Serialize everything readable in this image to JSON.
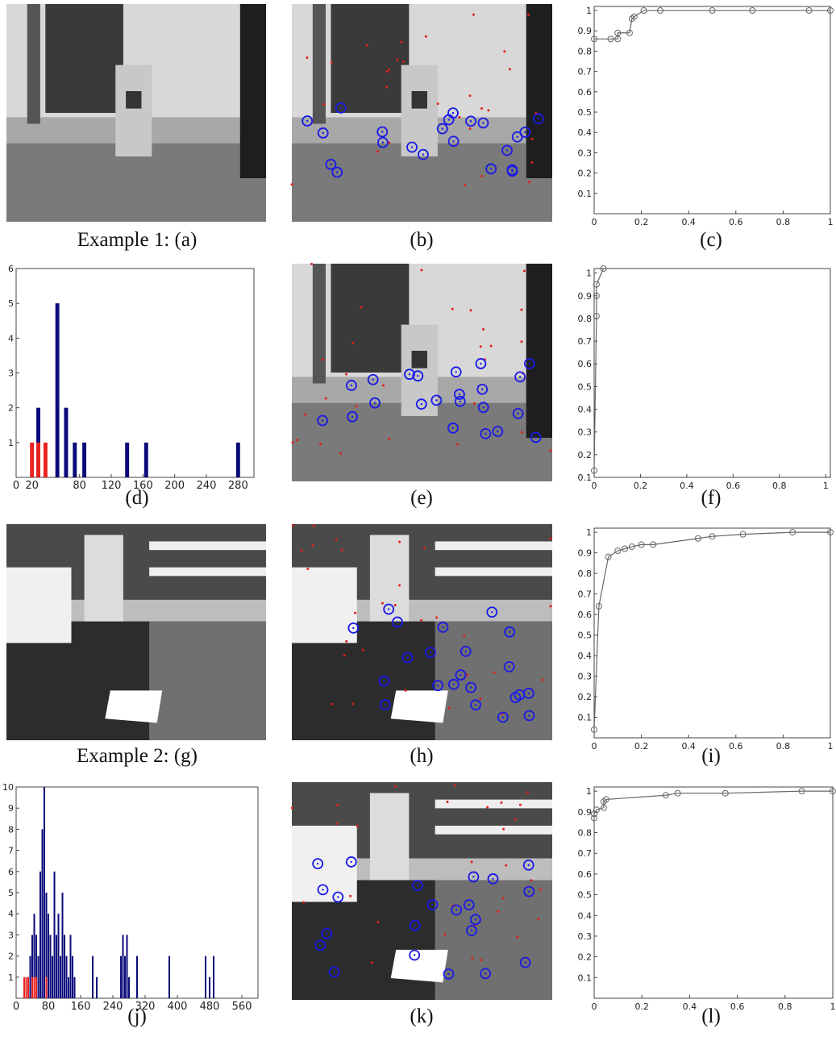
{
  "captions": [
    "Example 1: (a)",
    "(b)",
    "(c)",
    "(d)",
    "(e)",
    "(f)",
    "Example 2: (g)",
    "(h)",
    "(i)",
    "(j)",
    "(k)",
    "(l)"
  ],
  "chart_data": [
    {
      "type": "line",
      "marker": "o",
      "color": "#666",
      "xlim": [
        0,
        1
      ],
      "ylim": [
        0,
        1.02
      ],
      "xticks": [
        0,
        0.2,
        0.4,
        0.6,
        0.8,
        1
      ],
      "yticks": [
        0.1,
        0.2,
        0.3,
        0.4,
        0.5,
        0.6,
        0.7,
        0.8,
        0.9,
        1
      ],
      "x": [
        0,
        0.07,
        0.1,
        0.1,
        0.15,
        0.16,
        0.17,
        0.21,
        0.28,
        0.5,
        0.67,
        0.91,
        1
      ],
      "series": [
        {
          "values": [
            0.86,
            0.86,
            0.86,
            0.89,
            0.89,
            0.96,
            0.97,
            1,
            1,
            1,
            1,
            1,
            1
          ]
        }
      ]
    },
    {
      "type": "bar",
      "xlim": [
        0,
        300
      ],
      "ylim": [
        0,
        6
      ],
      "bar_width": 5,
      "xticks": [
        0,
        20,
        80,
        120,
        160,
        200,
        240,
        280
      ],
      "yticks": [
        1,
        2,
        3,
        4,
        5,
        6
      ],
      "series": [
        {
          "color": "#0a0a7a",
          "x": [
            28,
            52,
            63,
            74,
            86,
            140,
            164,
            280
          ],
          "values": [
            2,
            5,
            2,
            1,
            1,
            1,
            1,
            1
          ]
        },
        {
          "color": "#e8231f",
          "x": [
            20,
            28,
            37
          ],
          "values": [
            1,
            1,
            1
          ]
        }
      ]
    },
    {
      "type": "line",
      "marker": "o",
      "color": "#666",
      "xlim": [
        0,
        1.02
      ],
      "ylim": [
        0.1,
        1.02
      ],
      "xticks": [
        0,
        0.2,
        0.4,
        0.6,
        0.8,
        1
      ],
      "yticks": [
        0.1,
        0.2,
        0.3,
        0.4,
        0.5,
        0.6,
        0.7,
        0.8,
        0.9,
        1
      ],
      "x": [
        0,
        0.01,
        0.01,
        0.01,
        0.04
      ],
      "series": [
        {
          "values": [
            0.13,
            0.81,
            0.9,
            0.95,
            1.02
          ]
        }
      ]
    },
    {
      "type": "line",
      "marker": "o",
      "color": "#666",
      "xlim": [
        0,
        1
      ],
      "ylim": [
        0,
        1.02
      ],
      "xticks": [
        0,
        0.2,
        0.4,
        0.6,
        0.8,
        1
      ],
      "yticks": [
        0.1,
        0.2,
        0.3,
        0.4,
        0.5,
        0.6,
        0.7,
        0.8,
        0.9,
        1
      ],
      "x": [
        0,
        0.02,
        0.06,
        0.1,
        0.13,
        0.16,
        0.2,
        0.25,
        0.44,
        0.5,
        0.63,
        0.84,
        1
      ],
      "series": [
        {
          "values": [
            0.04,
            0.64,
            0.88,
            0.91,
            0.92,
            0.93,
            0.94,
            0.94,
            0.97,
            0.98,
            0.99,
            1,
            1
          ]
        }
      ]
    },
    {
      "type": "bar",
      "xlim": [
        0,
        600
      ],
      "ylim": [
        0,
        10
      ],
      "bar_width": 4,
      "xticks": [
        0,
        80,
        160,
        240,
        320,
        400,
        480,
        560
      ],
      "yticks": [
        1,
        2,
        3,
        4,
        5,
        6,
        7,
        8,
        9,
        10
      ],
      "series": [
        {
          "color": "#0a0a7a",
          "x": [
            30,
            35,
            40,
            45,
            50,
            55,
            60,
            65,
            70,
            75,
            80,
            85,
            90,
            95,
            100,
            105,
            110,
            115,
            120,
            125,
            130,
            135,
            140,
            145,
            190,
            200,
            260,
            265,
            270,
            275,
            280,
            300,
            380,
            470,
            480,
            490
          ],
          "values": [
            1,
            2,
            3,
            4,
            3,
            2,
            6,
            8,
            10,
            5,
            4,
            3,
            2,
            6,
            3,
            4,
            2,
            5,
            3,
            2,
            1,
            3,
            2,
            1,
            2,
            1,
            2,
            3,
            2,
            3,
            1,
            2,
            2,
            2,
            1,
            2
          ]
        },
        {
          "color": "#e8231f",
          "x": [
            20,
            25,
            30,
            40,
            45,
            50,
            75
          ],
          "values": [
            1,
            1,
            1,
            1,
            1,
            1,
            1
          ]
        }
      ]
    },
    {
      "type": "line",
      "marker": "o",
      "color": "#666",
      "xlim": [
        0,
        1
      ],
      "ylim": [
        0,
        1.02
      ],
      "xticks": [
        0,
        0.2,
        0.4,
        0.6,
        0.8,
        1
      ],
      "yticks": [
        0.1,
        0.2,
        0.3,
        0.4,
        0.5,
        0.6,
        0.7,
        0.8,
        0.9,
        1
      ],
      "x": [
        0,
        0,
        0.01,
        0.04,
        0.04,
        0.05,
        0.3,
        0.35,
        0.55,
        0.87,
        1
      ],
      "series": [
        {
          "values": [
            0.87,
            0.89,
            0.91,
            0.92,
            0.95,
            0.96,
            0.98,
            0.99,
            0.99,
            1,
            1
          ]
        }
      ]
    }
  ]
}
